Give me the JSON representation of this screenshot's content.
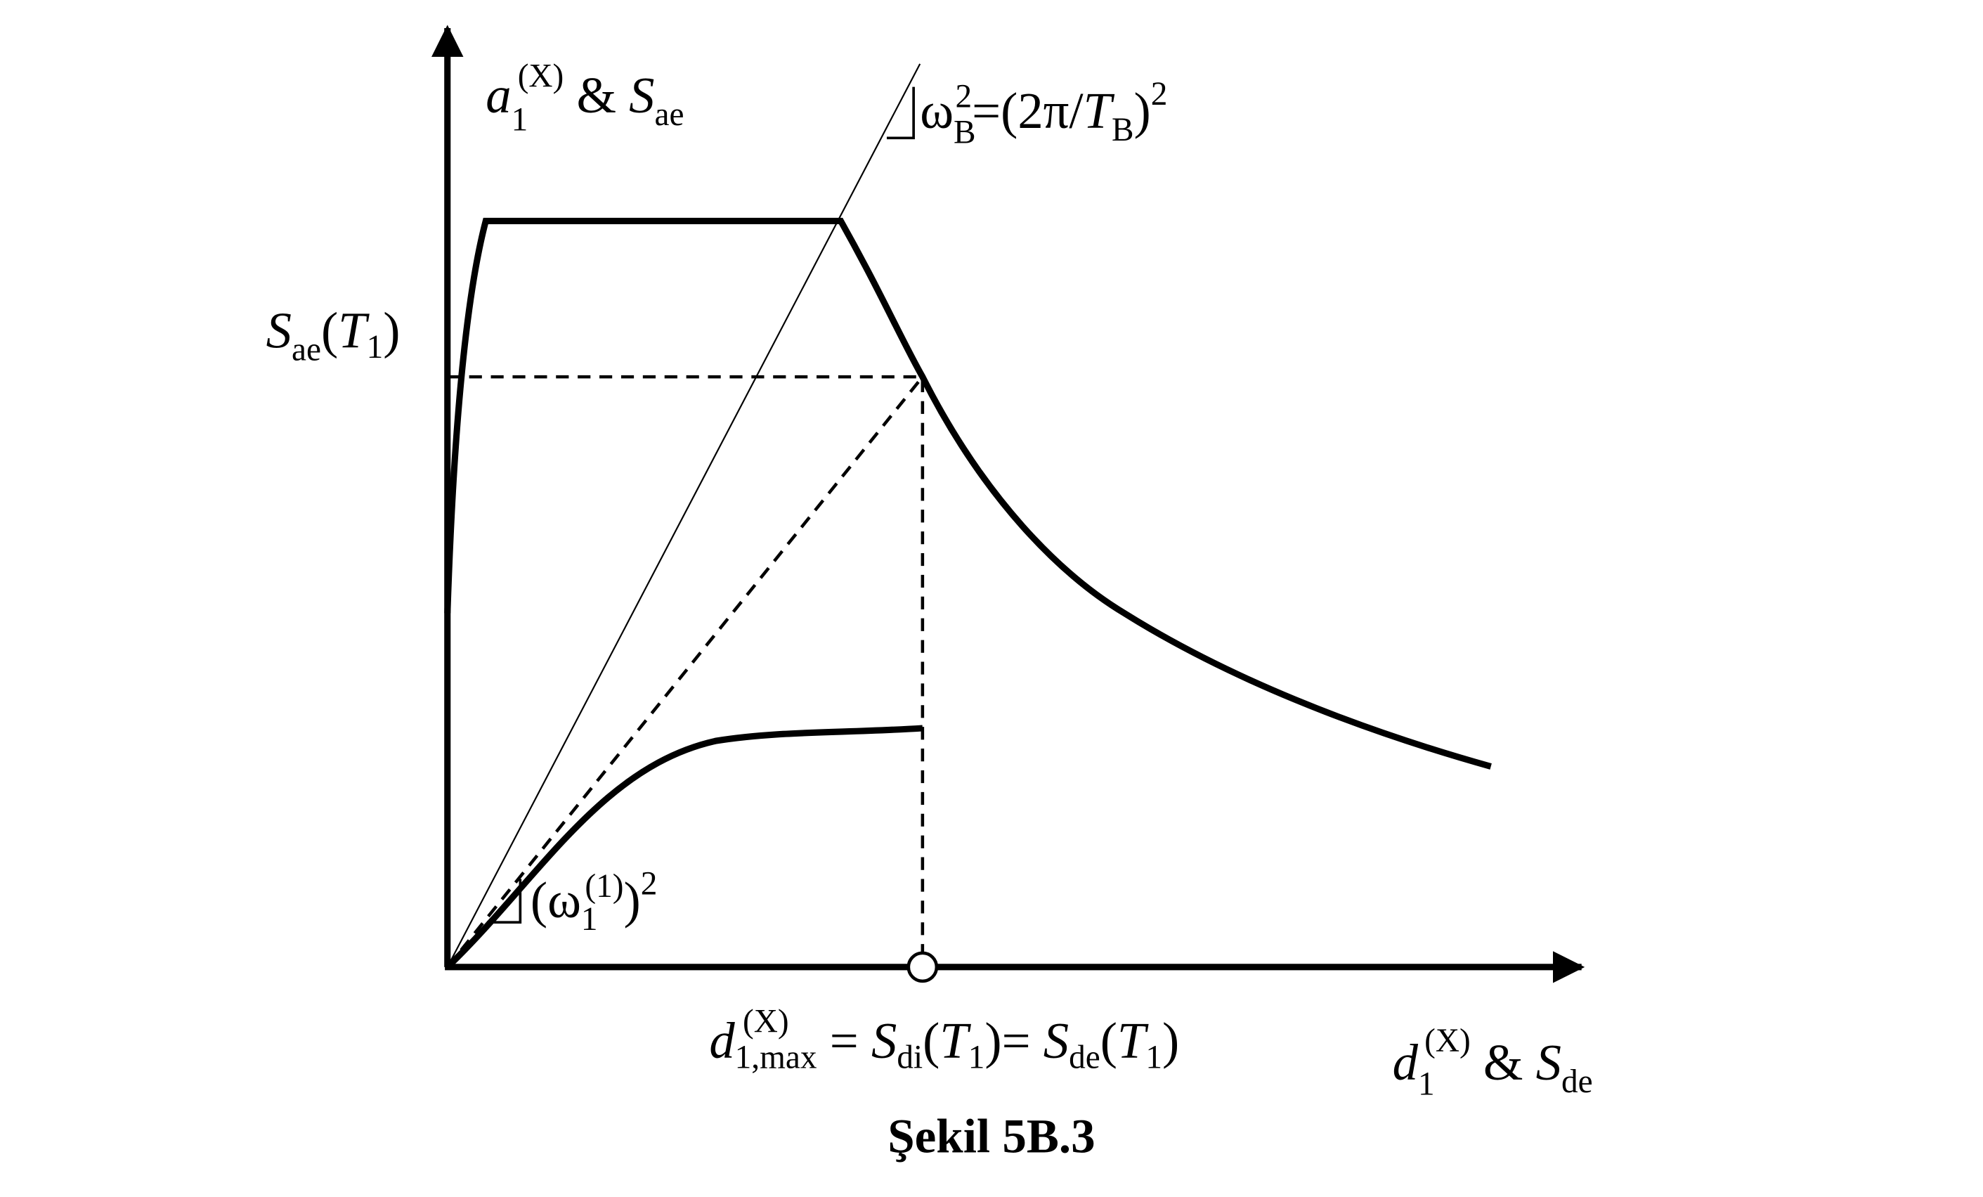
{
  "figure": {
    "y_axis_label": [
      "a",
      "1",
      "(X)",
      " & ",
      "S",
      "ae"
    ],
    "slope_b_label": [
      "ω",
      "B",
      "2",
      "=(2π/",
      "T",
      "B",
      ")",
      "2"
    ],
    "spectral_value_label": [
      "S",
      "ae",
      "(",
      "T",
      "1",
      ")"
    ],
    "slope_1_label": [
      "(ω",
      "1",
      "(1)",
      ")",
      "2"
    ],
    "displacement_label": [
      "d",
      "1,max",
      "(X)",
      " = ",
      "S",
      "di",
      "(",
      "T",
      "1",
      ")= ",
      "S",
      "de",
      "(",
      "T",
      "1",
      ")"
    ],
    "x_axis_label": [
      "d",
      "1",
      "(X)",
      " & ",
      "S",
      "de"
    ],
    "caption": "Şekil 5B.3"
  }
}
